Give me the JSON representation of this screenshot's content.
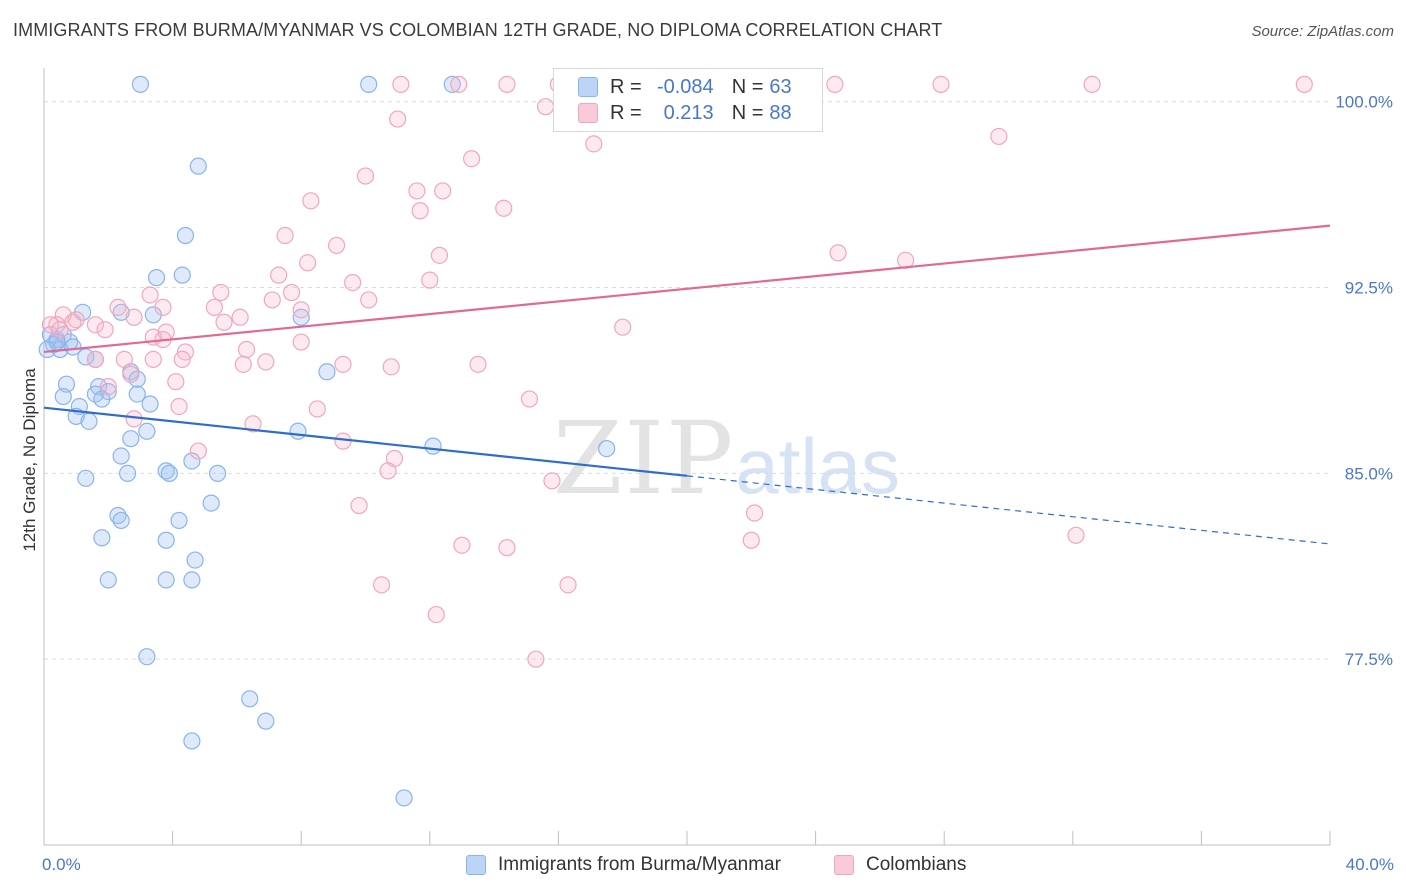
{
  "title": "IMMIGRANTS FROM BURMA/MYANMAR VS COLOMBIAN 12TH GRADE, NO DIPLOMA CORRELATION CHART",
  "source": "Source: ZipAtlas.com",
  "watermark": {
    "zip": "ZIP",
    "atlas": "atlas"
  },
  "colors": {
    "blue": "#8ab4ec",
    "blue_line": "#2f6dcc",
    "pink": "#f2a6be",
    "pink_line": "#e06a94",
    "tick_text": "#4a78c8"
  },
  "legend_top": {
    "rows": [
      {
        "r_label": "R =",
        "r_value": "-0.084",
        "n_label": "N =",
        "n_value": "63"
      },
      {
        "r_label": "R =",
        "r_value": "0.213",
        "n_label": "N =",
        "n_value": "88"
      }
    ]
  },
  "legend_bottom": {
    "items": [
      "Immigrants from Burma/Myanmar",
      "Colombians"
    ]
  },
  "chart_data": {
    "type": "scatter",
    "title": "IMMIGRANTS FROM BURMA/MYANMAR VS COLOMBIAN 12TH GRADE, NO DIPLOMA CORRELATION CHART",
    "xlabel": "",
    "ylabel": "12th Grade, No Diploma",
    "xlim": [
      0.0,
      40.0
    ],
    "ylim": [
      70.0,
      101.2
    ],
    "x_tick_labels": [
      "0.0%",
      "40.0%"
    ],
    "y_ticks": [
      100.0,
      92.5,
      85.0,
      77.5
    ],
    "y_tick_labels": [
      "100.0%",
      "92.5%",
      "85.0%",
      "77.5%"
    ],
    "grid": true,
    "legend_position": "top-center",
    "series": [
      {
        "name": "Immigrants from Burma/Myanmar",
        "trend": {
          "x0": 0.0,
          "y0": 87.65,
          "x1": 20.0,
          "y1": 84.9,
          "dash_to_x": 40.0,
          "dash_to_y": 82.15
        },
        "points": [
          [
            3.0,
            100.7
          ],
          [
            10.1,
            100.7
          ],
          [
            12.7,
            100.7
          ],
          [
            4.8,
            97.4
          ],
          [
            4.4,
            94.6
          ],
          [
            4.3,
            93.0
          ],
          [
            3.5,
            92.9
          ],
          [
            2.4,
            91.5
          ],
          [
            3.4,
            91.4
          ],
          [
            8.0,
            91.3
          ],
          [
            1.2,
            91.5
          ],
          [
            0.6,
            90.6
          ],
          [
            0.4,
            90.4
          ],
          [
            0.8,
            90.3
          ],
          [
            0.3,
            90.2
          ],
          [
            0.5,
            90.0
          ],
          [
            1.6,
            89.6
          ],
          [
            2.7,
            89.1
          ],
          [
            8.8,
            89.1
          ],
          [
            2.9,
            88.8
          ],
          [
            0.7,
            88.6
          ],
          [
            1.7,
            88.5
          ],
          [
            0.6,
            88.1
          ],
          [
            1.6,
            88.2
          ],
          [
            2.0,
            88.3
          ],
          [
            1.8,
            88.0
          ],
          [
            2.9,
            88.2
          ],
          [
            1.1,
            87.7
          ],
          [
            3.3,
            87.8
          ],
          [
            1.0,
            87.3
          ],
          [
            1.4,
            87.1
          ],
          [
            3.2,
            86.7
          ],
          [
            7.9,
            86.7
          ],
          [
            12.1,
            86.1
          ],
          [
            17.5,
            86.0
          ],
          [
            2.4,
            85.7
          ],
          [
            2.7,
            86.4
          ],
          [
            3.8,
            85.1
          ],
          [
            4.6,
            85.5
          ],
          [
            3.9,
            85.0
          ],
          [
            2.6,
            85.0
          ],
          [
            5.4,
            85.0
          ],
          [
            1.3,
            84.8
          ],
          [
            5.2,
            83.8
          ],
          [
            2.3,
            83.3
          ],
          [
            2.4,
            83.1
          ],
          [
            4.2,
            83.1
          ],
          [
            1.8,
            82.4
          ],
          [
            3.8,
            82.3
          ],
          [
            4.7,
            81.5
          ],
          [
            2.0,
            80.7
          ],
          [
            3.8,
            80.7
          ],
          [
            4.6,
            80.7
          ],
          [
            3.2,
            77.6
          ],
          [
            6.4,
            75.9
          ],
          [
            6.9,
            75.0
          ],
          [
            4.6,
            74.2
          ],
          [
            11.2,
            71.9
          ],
          [
            0.2,
            90.6
          ],
          [
            0.4,
            90.3
          ],
          [
            0.9,
            90.1
          ],
          [
            1.3,
            89.7
          ],
          [
            0.1,
            90.0
          ]
        ]
      },
      {
        "name": "Colombians",
        "trend": {
          "x0": 0.0,
          "y0": 89.9,
          "x1": 40.0,
          "y1": 95.0
        },
        "points": [
          [
            11.1,
            100.7
          ],
          [
            12.9,
            100.7
          ],
          [
            14.4,
            100.7
          ],
          [
            16.0,
            100.7
          ],
          [
            24.6,
            100.7
          ],
          [
            27.9,
            100.7
          ],
          [
            32.6,
            100.7
          ],
          [
            39.2,
            100.7
          ],
          [
            15.6,
            99.8
          ],
          [
            11.0,
            99.3
          ],
          [
            17.4,
            99.2
          ],
          [
            29.7,
            98.6
          ],
          [
            17.1,
            98.3
          ],
          [
            13.3,
            97.7
          ],
          [
            10.0,
            97.0
          ],
          [
            11.6,
            96.4
          ],
          [
            12.4,
            96.4
          ],
          [
            8.3,
            96.0
          ],
          [
            14.3,
            95.7
          ],
          [
            11.7,
            95.6
          ],
          [
            7.5,
            94.6
          ],
          [
            9.1,
            94.2
          ],
          [
            24.7,
            93.9
          ],
          [
            12.3,
            93.8
          ],
          [
            26.8,
            93.6
          ],
          [
            8.2,
            93.5
          ],
          [
            7.3,
            93.0
          ],
          [
            9.6,
            92.7
          ],
          [
            12.0,
            92.8
          ],
          [
            5.5,
            92.3
          ],
          [
            7.7,
            92.3
          ],
          [
            3.3,
            92.2
          ],
          [
            7.1,
            92.0
          ],
          [
            10.1,
            92.0
          ],
          [
            2.3,
            91.7
          ],
          [
            3.7,
            91.7
          ],
          [
            5.3,
            91.7
          ],
          [
            8.0,
            91.6
          ],
          [
            0.6,
            91.4
          ],
          [
            1.0,
            91.2
          ],
          [
            2.8,
            91.3
          ],
          [
            6.1,
            91.3
          ],
          [
            0.4,
            91.0
          ],
          [
            0.9,
            91.1
          ],
          [
            5.6,
            91.1
          ],
          [
            1.6,
            91.0
          ],
          [
            3.8,
            90.7
          ],
          [
            18.0,
            90.9
          ],
          [
            3.4,
            90.5
          ],
          [
            8.0,
            90.3
          ],
          [
            6.3,
            90.0
          ],
          [
            4.4,
            89.9
          ],
          [
            1.6,
            89.6
          ],
          [
            2.5,
            89.6
          ],
          [
            3.4,
            89.6
          ],
          [
            4.3,
            89.6
          ],
          [
            6.9,
            89.5
          ],
          [
            6.2,
            89.4
          ],
          [
            9.3,
            89.4
          ],
          [
            10.8,
            89.3
          ],
          [
            13.5,
            89.4
          ],
          [
            2.7,
            89.0
          ],
          [
            4.1,
            88.7
          ],
          [
            2.0,
            88.5
          ],
          [
            15.1,
            88.0
          ],
          [
            4.2,
            87.7
          ],
          [
            8.5,
            87.6
          ],
          [
            2.8,
            87.2
          ],
          [
            6.5,
            87.0
          ],
          [
            9.3,
            86.3
          ],
          [
            4.8,
            85.9
          ],
          [
            10.9,
            85.6
          ],
          [
            10.7,
            85.1
          ],
          [
            15.8,
            84.7
          ],
          [
            9.8,
            83.7
          ],
          [
            22.1,
            83.4
          ],
          [
            32.1,
            82.5
          ],
          [
            22.0,
            82.3
          ],
          [
            13.0,
            82.1
          ],
          [
            14.4,
            82.0
          ],
          [
            10.5,
            80.5
          ],
          [
            16.3,
            80.5
          ],
          [
            12.2,
            79.3
          ],
          [
            15.3,
            77.5
          ],
          [
            0.2,
            91.0
          ],
          [
            0.5,
            90.8
          ],
          [
            1.9,
            90.8
          ],
          [
            3.7,
            90.4
          ]
        ]
      }
    ]
  }
}
